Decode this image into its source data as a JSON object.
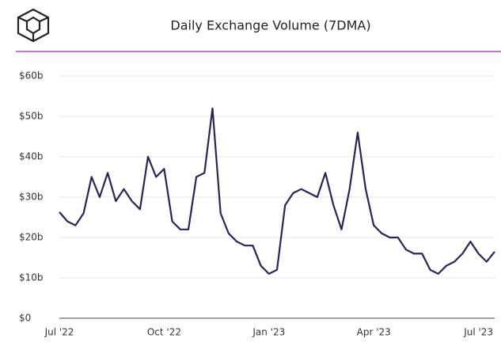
{
  "chart_data": {
    "type": "line",
    "title": "Daily Exchange Volume (7DMA)",
    "categories": [
      "Jul '22",
      null,
      null,
      null,
      null,
      null,
      null,
      null,
      null,
      null,
      null,
      null,
      null,
      "Oct '22",
      null,
      null,
      null,
      null,
      null,
      null,
      null,
      null,
      null,
      null,
      null,
      null,
      "Jan '23",
      null,
      null,
      null,
      null,
      null,
      null,
      null,
      null,
      null,
      null,
      null,
      null,
      "Apr '23",
      null,
      null,
      null,
      null,
      null,
      null,
      null,
      null,
      null,
      null,
      null,
      null,
      "Jul '23",
      null,
      null
    ],
    "series": [
      {
        "name": "Daily Exchange Volume",
        "color": "#2a2358",
        "values": [
          26.3,
          24,
          23,
          26,
          35,
          30,
          36,
          29,
          32,
          29,
          27,
          40,
          35,
          37,
          24,
          22,
          22,
          35,
          36,
          52,
          26,
          21,
          19,
          18,
          18,
          13,
          11,
          12,
          28,
          31,
          32,
          31,
          30,
          36,
          28,
          22,
          32,
          46,
          32,
          23,
          21,
          20,
          20,
          17,
          16,
          16,
          12,
          11,
          13,
          14,
          16,
          19,
          16,
          14,
          16.5
        ]
      }
    ],
    "ylim": [
      0,
      60
    ],
    "yticks": [
      {
        "value": 0,
        "label": "$0"
      },
      {
        "value": 10,
        "label": "$10b"
      },
      {
        "value": 20,
        "label": "$20b"
      },
      {
        "value": 30,
        "label": "$30b"
      },
      {
        "value": 40,
        "label": "$40b"
      },
      {
        "value": 50,
        "label": "$50b"
      },
      {
        "value": 60,
        "label": "$60b"
      }
    ],
    "grid": true
  }
}
